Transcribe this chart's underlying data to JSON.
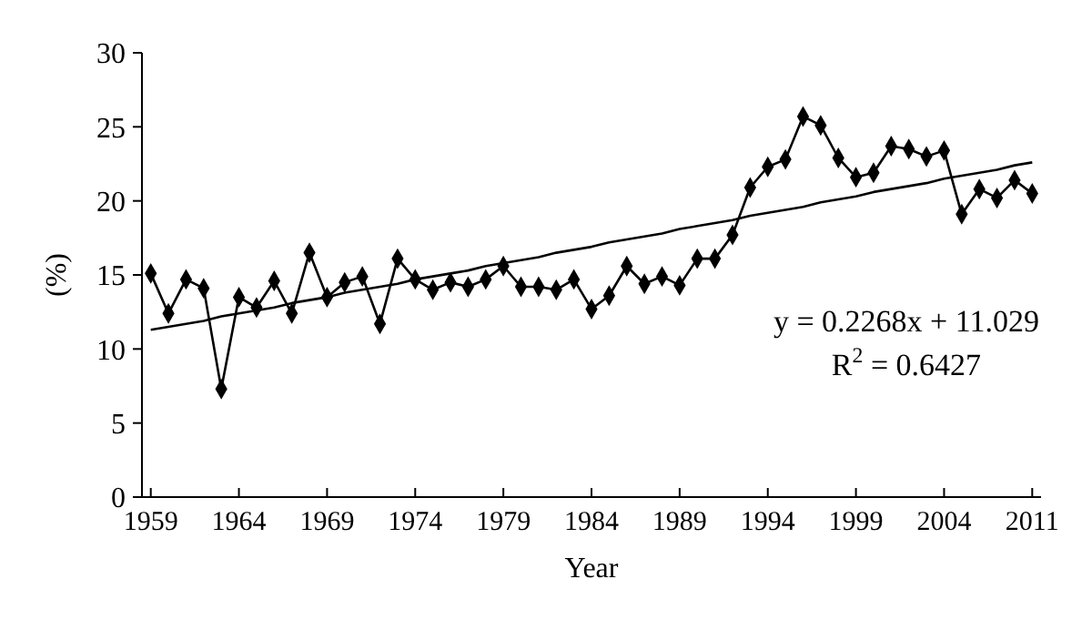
{
  "chart_data": {
    "type": "line",
    "xlabel": "Year",
    "ylabel": "(%)",
    "categories": [
      "1959",
      null,
      null,
      null,
      null,
      "1964",
      null,
      null,
      null,
      null,
      "1969",
      null,
      null,
      null,
      null,
      "1974",
      null,
      null,
      null,
      null,
      "1979",
      null,
      null,
      null,
      null,
      "1984",
      null,
      null,
      null,
      null,
      "1989",
      null,
      null,
      null,
      null,
      "1994",
      null,
      null,
      null,
      null,
      "1999",
      null,
      null,
      null,
      null,
      "2004",
      null,
      null,
      null,
      null,
      "2011"
    ],
    "series": [
      {
        "color": "#000000",
        "marker": "diamond",
        "values": [
          15.1,
          12.4,
          14.7,
          14.1,
          7.3,
          13.5,
          12.8,
          14.6,
          12.4,
          16.5,
          13.5,
          14.5,
          14.9,
          11.7,
          16.1,
          14.7,
          14.0,
          14.5,
          14.2,
          14.7,
          15.6,
          14.2,
          14.2,
          14.0,
          14.7,
          12.7,
          13.6,
          15.6,
          14.4,
          14.9,
          14.3,
          16.1,
          16.1,
          17.7,
          20.9,
          22.3,
          22.8,
          25.7,
          25.1,
          22.9,
          21.6,
          21.9,
          23.7,
          23.5,
          23.0,
          23.4,
          19.1,
          20.8,
          20.2,
          21.4,
          20.5
        ]
      },
      {
        "type": "line",
        "color": "#000000",
        "marker": "none",
        "values": [
          11.3,
          11.5,
          11.7,
          11.9,
          12.2,
          12.4,
          12.6,
          12.8,
          13.1,
          13.3,
          13.5,
          13.8,
          14.0,
          14.2,
          14.4,
          14.7,
          14.9,
          15.1,
          15.3,
          15.6,
          15.8,
          16.0,
          16.2,
          16.5,
          16.7,
          16.9,
          17.2,
          17.4,
          17.6,
          17.8,
          18.1,
          18.3,
          18.5,
          18.7,
          19.0,
          19.2,
          19.4,
          19.6,
          19.9,
          20.1,
          20.3,
          20.6,
          20.8,
          21.0,
          21.2,
          21.5,
          21.7,
          21.9,
          22.1,
          22.4,
          22.6
        ]
      }
    ],
    "ylim": [
      0,
      30
    ],
    "yticks": [
      0,
      5,
      10,
      15,
      20,
      25,
      30
    ],
    "grid": false,
    "annotations": [
      "y = 0.2268x + 11.029",
      "R$^{2}$ = 0.6427"
    ]
  }
}
